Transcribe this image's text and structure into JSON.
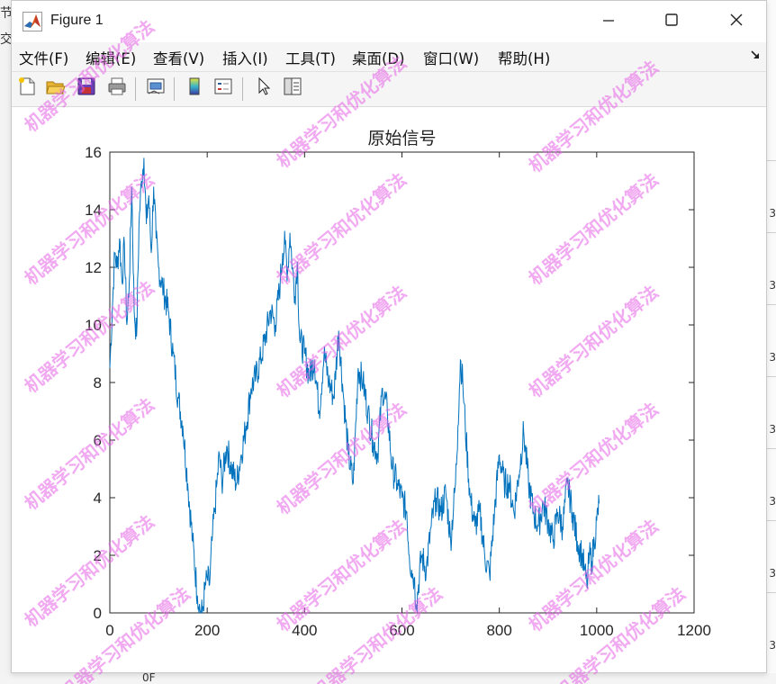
{
  "window": {
    "title": "Figure 1",
    "controls": [
      "minimize",
      "maximize",
      "close"
    ]
  },
  "background_app": {
    "left_glyphs": [
      "节",
      "交"
    ],
    "right_numbers": [
      "3",
      "3",
      "3",
      "3",
      "3",
      "3",
      "3",
      "3"
    ],
    "bottom_text": "0F"
  },
  "menu": {
    "items": [
      "文件(F)",
      "编辑(E)",
      "查看(V)",
      "插入(I)",
      "工具(T)",
      "桌面(D)",
      "窗口(W)",
      "帮助(H)"
    ]
  },
  "toolbar": {
    "icons": [
      "new-figure-icon",
      "open-file-icon",
      "save-icon",
      "print-icon",
      "link-plot-icon",
      "colorbar-icon",
      "legend-icon",
      "pointer-icon",
      "property-inspector-icon"
    ]
  },
  "watermark": {
    "text": "机器学习和优化算法",
    "color": "#e664e6"
  },
  "chart_data": {
    "type": "line",
    "title": "原始信号",
    "xlabel": "",
    "ylabel": "",
    "xlim": [
      0,
      1200
    ],
    "ylim": [
      0,
      16
    ],
    "xticks": [
      0,
      200,
      400,
      600,
      800,
      1000,
      1200
    ],
    "yticks": [
      0,
      2,
      4,
      6,
      8,
      10,
      12,
      14,
      16
    ],
    "grid": false,
    "line_color": "#0072bd",
    "series": [
      {
        "x": [
          0,
          5,
          10,
          15,
          20,
          25,
          30,
          35,
          40,
          45,
          50,
          55,
          60,
          65,
          70,
          75,
          80,
          85,
          90,
          95,
          100,
          110,
          120,
          130,
          140,
          150,
          160,
          170,
          180,
          185,
          190,
          195,
          200,
          205,
          210,
          215,
          220,
          225,
          230,
          240,
          250,
          260,
          270,
          280,
          290,
          300,
          310,
          320,
          330,
          340,
          350,
          355,
          360,
          365,
          370,
          375,
          380,
          385,
          390,
          400,
          410,
          420,
          430,
          440,
          450,
          460,
          470,
          480,
          490,
          500,
          510,
          520,
          530,
          540,
          550,
          560,
          570,
          580,
          590,
          600,
          610,
          615,
          620,
          625,
          630,
          640,
          650,
          660,
          670,
          680,
          690,
          700,
          710,
          715,
          720,
          725,
          730,
          740,
          750,
          760,
          770,
          780,
          790,
          800,
          810,
          820,
          830,
          840,
          850,
          860,
          870,
          880,
          890,
          900,
          910,
          920,
          930,
          940,
          950,
          960,
          970,
          975,
          980,
          985,
          990,
          995,
          1000,
          1005
        ],
        "y": [
          8.5,
          10.5,
          12.5,
          12.0,
          13.0,
          11.5,
          12.8,
          10.0,
          11.5,
          14.8,
          10.5,
          9.6,
          13.5,
          15.0,
          15.8,
          13.5,
          14.5,
          12.5,
          14.8,
          13.0,
          12.0,
          11.2,
          10.5,
          9.0,
          7.5,
          6.5,
          4.5,
          2.5,
          0.6,
          0.1,
          0.0,
          0.8,
          1.2,
          1.0,
          2.5,
          3.5,
          4.5,
          5.5,
          4.5,
          5.8,
          5.0,
          4.5,
          5.5,
          6.5,
          7.8,
          8.2,
          8.8,
          9.6,
          10.5,
          10.0,
          11.5,
          12.5,
          12.8,
          11.8,
          13.2,
          12.0,
          11.0,
          12.2,
          9.5,
          9.0,
          8.2,
          8.8,
          7.0,
          9.0,
          8.0,
          7.5,
          9.8,
          7.5,
          5.5,
          4.5,
          8.5,
          8.0,
          7.0,
          6.0,
          5.5,
          7.8,
          7.0,
          5.0,
          4.5,
          4.0,
          3.5,
          2.0,
          1.5,
          1.2,
          0.3,
          2.0,
          1.5,
          3.0,
          4.0,
          3.5,
          4.2,
          2.5,
          4.5,
          6.5,
          8.8,
          8.0,
          6.5,
          4.0,
          3.0,
          3.5,
          2.0,
          1.3,
          3.5,
          5.5,
          4.5,
          4.5,
          3.5,
          4.8,
          6.3,
          4.5,
          3.5,
          3.0,
          3.8,
          3.2,
          2.5,
          3.5,
          3.0,
          4.5,
          3.5,
          2.5,
          2.0,
          1.5,
          0.9,
          2.0,
          1.8,
          2.5,
          3.2,
          3.8
        ]
      }
    ]
  }
}
